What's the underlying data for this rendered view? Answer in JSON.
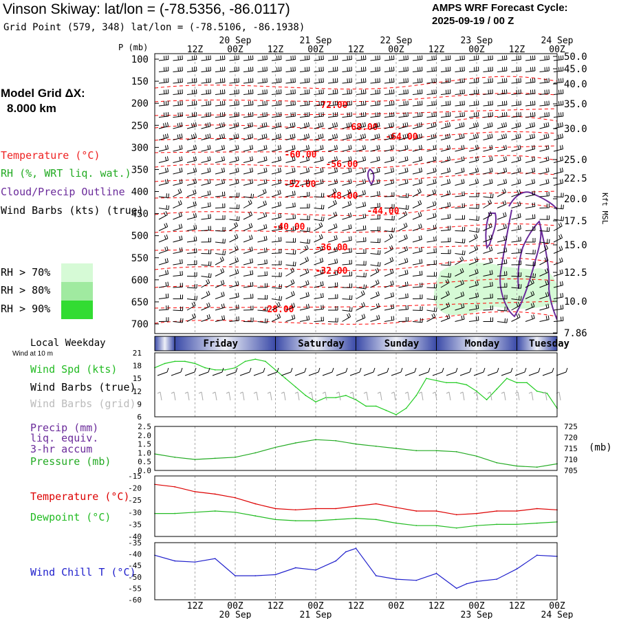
{
  "header": {
    "title": "Vinson Skiway:  lat/lon = (-78.5356, -86.0117)",
    "grid_point": "Grid Point (579, 348) lat/lon = (-78.5106, -86.1938)",
    "forecast_line1": "AMPS WRF Forecast Cycle:",
    "forecast_line2": "2025-09-19 / 00  Z"
  },
  "legend": {
    "model_grid": "Model Grid ΔX:",
    "model_grid_value": "8.000 km",
    "temperature": "Temperature (°C)",
    "rh": "RH (%, WRT liq. wat.)",
    "cloud": "Cloud/Precip Outline",
    "wind_barbs": "Wind Barbs (kts) (true)",
    "rh70": "RH > 70%",
    "rh80": "RH > 80%",
    "rh90": "RH > 90%",
    "rh70_color": "#d6fad6",
    "rh80_color": "#a0eaa0",
    "rh90_color": "#32dc32"
  },
  "time_axis": {
    "top_ticks": [
      "12Z",
      "00Z",
      "12Z",
      "00Z",
      "12Z",
      "00Z",
      "12Z",
      "00Z",
      "12Z",
      "00Z"
    ],
    "top_dates": [
      "20 Sep",
      "21 Sep",
      "22 Sep",
      "23 Sep",
      "24 Sep"
    ],
    "bottom_ticks": [
      "12Z",
      "00Z",
      "12Z",
      "00Z",
      "12Z",
      "00Z",
      "12Z",
      "00Z",
      "12Z",
      "00Z"
    ],
    "bottom_dates": [
      "20 Sep",
      "21 Sep",
      "23 Sep",
      "24 Sep"
    ]
  },
  "weekday": {
    "label": "Local Weekday",
    "days": [
      "Friday",
      "Saturday",
      "Sunday",
      "Monday",
      "Tuesday"
    ]
  },
  "chart_data": [
    {
      "type": "heatmap",
      "name": "vertical cross-section",
      "y_label": "P (mb)",
      "y_ticks": [
        "100",
        "150",
        "200",
        "250",
        "300",
        "350",
        "400",
        "450",
        "500",
        "550",
        "600",
        "650",
        "700"
      ],
      "right_label": "Kft MSL",
      "right_ticks": [
        "50.0",
        "45.0",
        "40.0",
        "35.0",
        "30.0",
        "25.0",
        "22.5",
        "20.0",
        "17.5",
        "15.0",
        "12.5",
        "10.0",
        "7.86"
      ],
      "contour_labels": [
        "-72.00",
        "-68.00",
        "-64.00",
        "-60.00",
        "-56.00",
        "-52.00",
        "-48.00",
        "-44.00",
        "-40.00",
        "-36.00",
        "-32.00",
        "-28.00"
      ],
      "contour_color": "#ff0000",
      "cloud_color": "#6a2a9a"
    },
    {
      "type": "line",
      "name": "wind speed",
      "label_speed": "Wind Spd (kts)",
      "label_barbs_true": "Wind Barbs (true)",
      "label_barbs_grid": "Wind Barbs (grid)",
      "wind_at": "Wind at 10 m",
      "ylim": [
        6,
        21
      ],
      "y_ticks": [
        "21",
        "18",
        "15",
        "12",
        "9",
        "6"
      ],
      "hours": [
        0,
        3,
        6,
        9,
        12,
        15,
        18,
        21,
        24,
        27,
        30,
        33,
        36,
        39,
        42,
        45,
        48,
        51,
        54,
        57,
        60,
        63,
        66,
        69,
        72,
        75,
        78,
        81,
        84,
        87,
        90,
        93,
        96,
        99,
        102,
        105,
        108,
        111,
        114,
        117,
        120
      ],
      "values": [
        17.5,
        18.5,
        19.0,
        19.0,
        18.5,
        17.5,
        17.0,
        17.0,
        17.5,
        19.0,
        19.5,
        19.0,
        17.0,
        15.0,
        13.0,
        11.0,
        9.5,
        10.5,
        10.5,
        11.0,
        10.0,
        8.5,
        8.5,
        7.5,
        6.5,
        8.0,
        11.0,
        15.0,
        14.5,
        14.0,
        14.0,
        13.5,
        12.0,
        10.0,
        12.5,
        15.0,
        14.0,
        14.0,
        12.0,
        11.5,
        8.0
      ],
      "color": "#22cc22"
    },
    {
      "type": "line",
      "name": "precip and pressure",
      "label_precip": "Precip (mm)",
      "label_liq": "liq. equiv.",
      "label_accum": "3-hr accum",
      "label_pressure": "Pressure (mb)",
      "precip_ticks": [
        "2.5",
        "2.0",
        "1.5",
        "1.0",
        "0.5",
        "0.0"
      ],
      "pressure_ticks": [
        "725",
        "720",
        "715",
        "710",
        "705"
      ],
      "pressure_unit": "(mb)",
      "ylim": [
        705,
        725
      ],
      "hours": [
        0,
        6,
        12,
        18,
        24,
        30,
        36,
        42,
        48,
        54,
        60,
        66,
        72,
        78,
        84,
        90,
        96,
        102,
        108,
        114,
        120
      ],
      "values": [
        712.5,
        711.0,
        710.0,
        710.5,
        711.0,
        713.0,
        715.5,
        717.5,
        719.0,
        718.5,
        717.0,
        716.0,
        715.0,
        714.0,
        714.0,
        713.5,
        711.5,
        708.5,
        707.0,
        706.5,
        708.0
      ],
      "color": "#22aa22"
    },
    {
      "type": "line",
      "name": "temperature and dewpoint",
      "label_temp": "Temperature (°C)",
      "label_dew": "Dewpoint (°C)",
      "ylim": [
        -40,
        -15
      ],
      "y_ticks": [
        "-15",
        "-20",
        "-25",
        "-30",
        "-35",
        "-40"
      ],
      "hours": [
        0,
        6,
        12,
        18,
        24,
        30,
        36,
        42,
        48,
        54,
        60,
        66,
        72,
        78,
        84,
        90,
        96,
        102,
        108,
        114,
        120
      ],
      "series": [
        {
          "name": "Temperature",
          "color": "#dd0000",
          "values": [
            -18.5,
            -19.5,
            -21.5,
            -22.5,
            -24.0,
            -26.5,
            -28.5,
            -29.0,
            -28.5,
            -28.5,
            -27.5,
            -26.5,
            -28.0,
            -29.5,
            -29.5,
            -31.0,
            -30.5,
            -29.5,
            -29.5,
            -28.5,
            -29.0
          ]
        },
        {
          "name": "Dewpoint",
          "color": "#22bb22",
          "values": [
            -30.5,
            -30.5,
            -30.0,
            -29.5,
            -30.0,
            -31.5,
            -33.0,
            -33.5,
            -33.5,
            -33.0,
            -32.5,
            -33.0,
            -34.5,
            -35.5,
            -35.5,
            -36.5,
            -35.5,
            -35.0,
            -35.0,
            -34.5,
            -34.0
          ]
        }
      ]
    },
    {
      "type": "line",
      "name": "wind chill",
      "label": "Wind Chill T (°C)",
      "ylim": [
        -60,
        -35
      ],
      "y_ticks": [
        "-35",
        "-40",
        "-45",
        "-50",
        "-55",
        "-60"
      ],
      "hours": [
        0,
        6,
        12,
        18,
        24,
        30,
        36,
        42,
        48,
        54,
        57,
        60,
        66,
        72,
        78,
        84,
        90,
        93,
        96,
        102,
        108,
        114,
        120
      ],
      "values": [
        -40.5,
        -43.0,
        -43.5,
        -42.0,
        -49.5,
        -49.5,
        -49.0,
        -46.0,
        -47.0,
        -43.0,
        -39.0,
        -37.5,
        -49.5,
        -51.0,
        -51.5,
        -48.5,
        -55.0,
        -53.0,
        -52.0,
        -51.0,
        -46.5,
        -40.5,
        -41.0
      ],
      "color": "#2020cc"
    }
  ]
}
